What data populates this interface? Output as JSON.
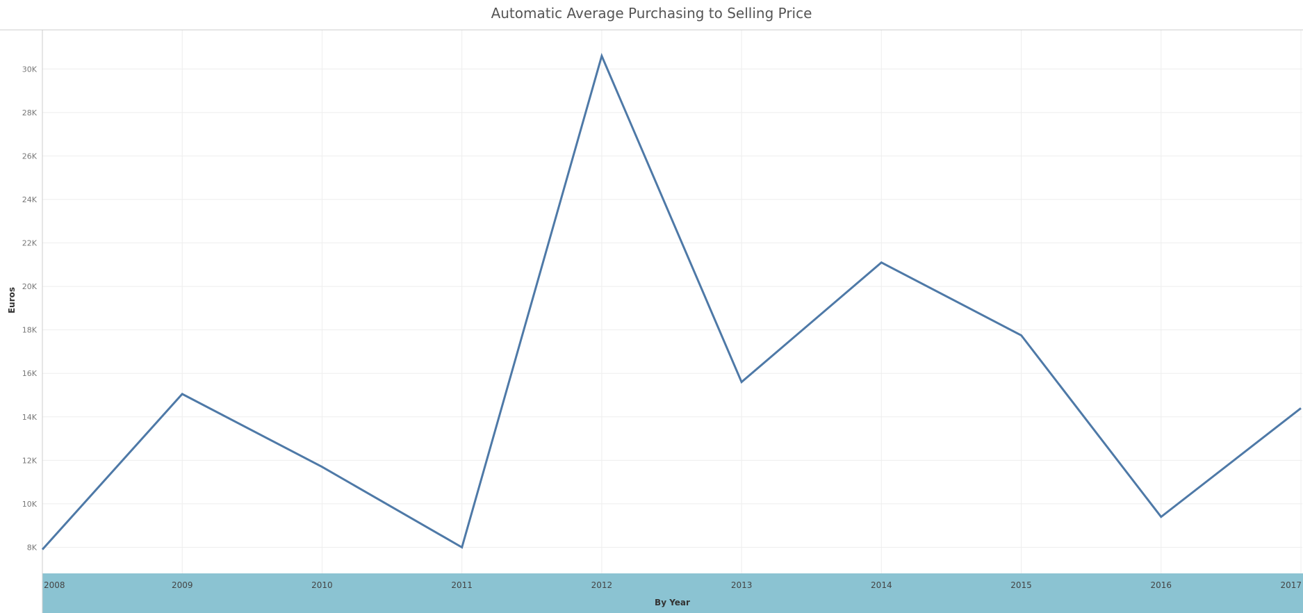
{
  "chart_data": {
    "type": "line",
    "title": "Automatic Average Purchasing to Selling Price",
    "xlabel": "By Year",
    "ylabel": "Euros",
    "categories": [
      "2008",
      "2009",
      "2010",
      "2011",
      "2012",
      "2013",
      "2014",
      "2015",
      "2016",
      "2017"
    ],
    "series": [
      {
        "values": [
          7900,
          15050,
          11700,
          8000,
          30600,
          15600,
          21100,
          17750,
          9400,
          14400
        ]
      }
    ],
    "ylim": [
      6800,
      31800
    ],
    "yticks": [
      8000,
      10000,
      12000,
      14000,
      16000,
      18000,
      20000,
      22000,
      24000,
      26000,
      28000,
      30000
    ],
    "ytick_labels": [
      "8K",
      "10K",
      "12K",
      "14K",
      "16K",
      "18K",
      "20K",
      "22K",
      "24K",
      "26K",
      "28K",
      "30K"
    ],
    "grid": true,
    "colors": {
      "line": "#4e79a7",
      "x_axis_band": "#8bc3d2",
      "grid": "#eeeeee",
      "axis": "#cccccc"
    }
  }
}
